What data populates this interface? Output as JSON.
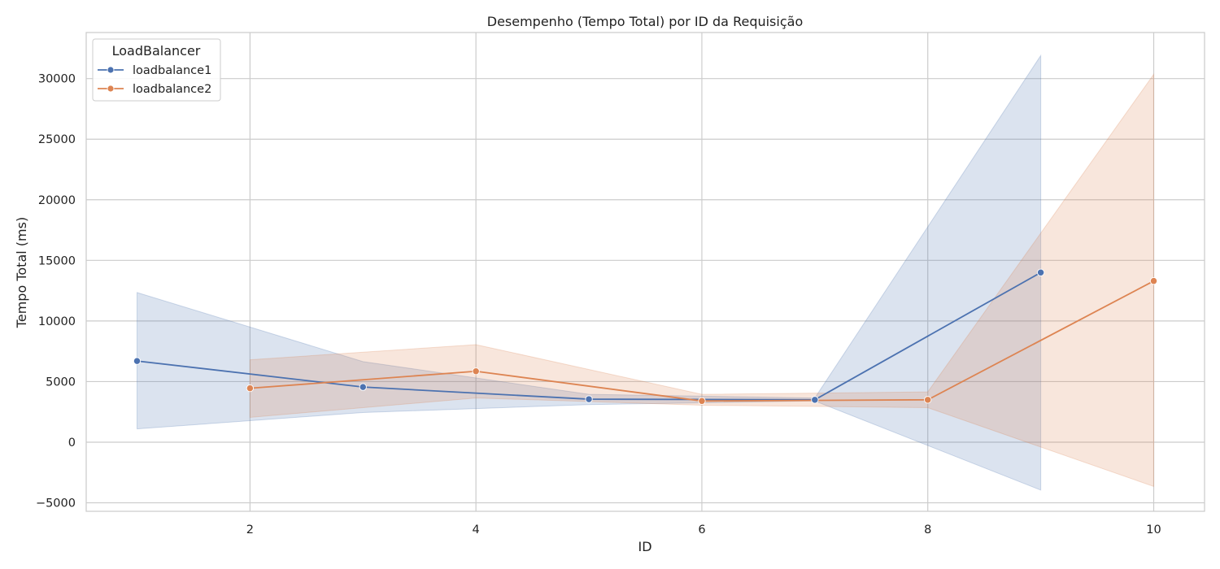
{
  "chart_data": {
    "type": "line",
    "title": "Desempenho (Tempo Total) por ID da Requisição",
    "xlabel": "ID",
    "ylabel": "Tempo Total (ms)",
    "xlim": [
      0.55,
      10.45
    ],
    "ylim": [
      -5700,
      33800
    ],
    "xticks": [
      2,
      4,
      6,
      8,
      10
    ],
    "yticks": [
      -5000,
      0,
      5000,
      10000,
      15000,
      20000,
      25000,
      30000
    ],
    "grid": true,
    "legend": {
      "title": "LoadBalancer",
      "placement": "top-left"
    },
    "series": [
      {
        "name": "loadbalance1",
        "color": "#4c72b0",
        "x": [
          1,
          3,
          5,
          7,
          9
        ],
        "y": [
          6700,
          4550,
          3550,
          3500,
          14000
        ],
        "ci_low": [
          1100,
          2450,
          3100,
          3400,
          -3950
        ],
        "ci_high": [
          12350,
          6650,
          3950,
          3650,
          31900
        ]
      },
      {
        "name": "loadbalance2",
        "color": "#dd8452",
        "x": [
          2,
          4,
          6,
          8,
          10
        ],
        "y": [
          4450,
          5850,
          3400,
          3500,
          13300
        ],
        "ci_low": [
          2050,
          3650,
          3050,
          2850,
          -3650
        ],
        "ci_high": [
          6800,
          8050,
          3950,
          4150,
          30350
        ]
      }
    ]
  }
}
